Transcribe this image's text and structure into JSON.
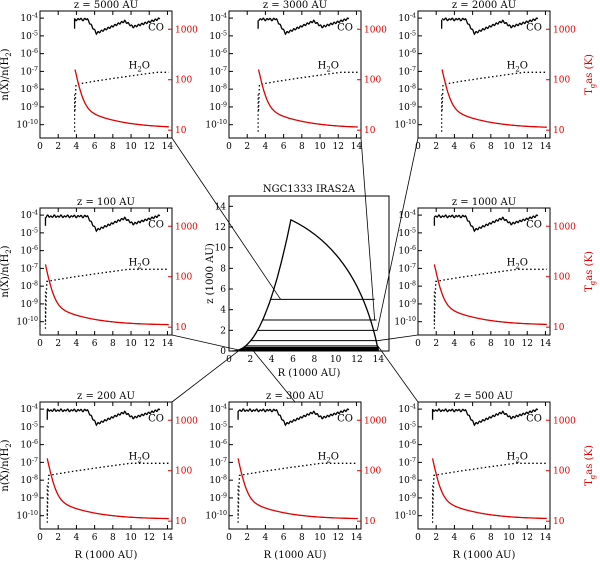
{
  "chart_data": {
    "type": "line",
    "x_axis": {
      "ticks": [
        "0",
        "2",
        "4",
        "6",
        "8",
        "10",
        "12",
        "14"
      ],
      "range": [
        0,
        14.5
      ],
      "label": "R (1000 AU)"
    },
    "y_left_ticks": [
      "10^{-4}",
      "10^{-5}",
      "10^{-6}",
      "10^{-7}",
      "10^{-8}",
      "10^{-9}",
      "10^{-10}"
    ],
    "y_right_ticks": [
      "1000",
      "100",
      "10"
    ],
    "y_left_label": "n(X)/n(H_2)",
    "y_right_label": "T_gas (K)",
    "species": {
      "co": "CO",
      "h2o": "H_2O"
    },
    "colors": {
      "abundance": "#000000",
      "temperature": "#e00000",
      "leader": "#000000"
    },
    "panels": [
      {
        "id": "z5000",
        "title": "z = 5000 AU",
        "z": 5000,
        "row": 0,
        "col": 0,
        "r_start": 3.8
      },
      {
        "id": "z3000",
        "title": "z = 3000 AU",
        "z": 3000,
        "row": 0,
        "col": 1,
        "r_start": 3.2
      },
      {
        "id": "z2000",
        "title": "z = 2000 AU",
        "z": 2000,
        "row": 0,
        "col": 2,
        "r_start": 2.6
      },
      {
        "id": "z100",
        "title": "z = 100 AU",
        "z": 100,
        "row": 1,
        "col": 0,
        "r_start": 0.6
      },
      {
        "id": "z1000",
        "title": "z = 1000 AU",
        "z": 1000,
        "row": 1,
        "col": 2,
        "r_start": 1.8
      },
      {
        "id": "z200",
        "title": "z = 200 AU",
        "z": 200,
        "row": 2,
        "col": 0,
        "r_start": 0.8
      },
      {
        "id": "z300",
        "title": "z = 300 AU",
        "z": 300,
        "row": 2,
        "col": 1,
        "r_start": 1.0
      },
      {
        "id": "z500",
        "title": "z = 500 AU",
        "z": 500,
        "row": 2,
        "col": 2,
        "r_start": 1.6
      }
    ],
    "center": {
      "title": "NGC1333 IRAS2A",
      "xlabel": "R (1000 AU)",
      "ylabel": "z (1000 AU)",
      "x_ticks": [
        "0",
        "2",
        "4",
        "6",
        "8",
        "10",
        "12",
        "14"
      ],
      "y_ticks": [
        "0",
        "2",
        "4",
        "6",
        "8",
        "10",
        "12",
        "14"
      ],
      "xlim": [
        0,
        15
      ],
      "ylim": [
        0,
        15
      ],
      "envelope_peak": {
        "r": 5.8,
        "z": 12.7
      },
      "envelope_outer_r": 14.0,
      "cut_heights_au": [
        5000,
        3000,
        2000,
        1000,
        500,
        300,
        200,
        100
      ]
    }
  }
}
